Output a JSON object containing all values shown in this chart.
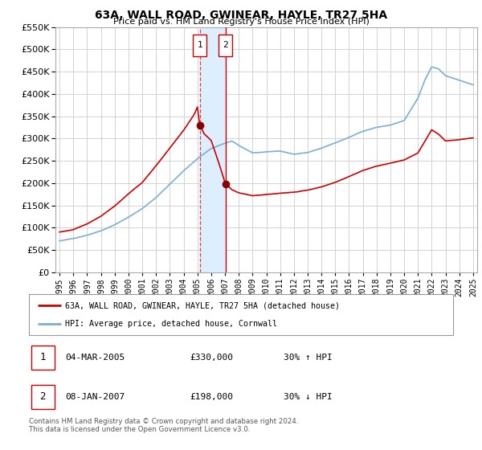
{
  "title": "63A, WALL ROAD, GWINEAR, HAYLE, TR27 5HA",
  "subtitle": "Price paid vs. HM Land Registry's House Price Index (HPI)",
  "footer": "Contains HM Land Registry data © Crown copyright and database right 2024.\nThis data is licensed under the Open Government Licence v3.0.",
  "legend_line1": "63A, WALL ROAD, GWINEAR, HAYLE, TR27 5HA (detached house)",
  "legend_line2": "HPI: Average price, detached house, Cornwall",
  "sale1_date": "04-MAR-2005",
  "sale1_price": "£330,000",
  "sale1_hpi": "30% ↑ HPI",
  "sale1_year": 2005.17,
  "sale1_value": 330000,
  "sale2_date": "08-JAN-2007",
  "sale2_price": "£198,000",
  "sale2_hpi": "30% ↓ HPI",
  "sale2_year": 2007.03,
  "sale2_value": 198000,
  "red_color": "#cc0000",
  "blue_color": "#7aaed6",
  "highlight_color": "#ddeeff",
  "grid_color": "#cccccc",
  "ylim": [
    0,
    550000
  ],
  "xlim_start": 1994.7,
  "xlim_end": 2025.3
}
